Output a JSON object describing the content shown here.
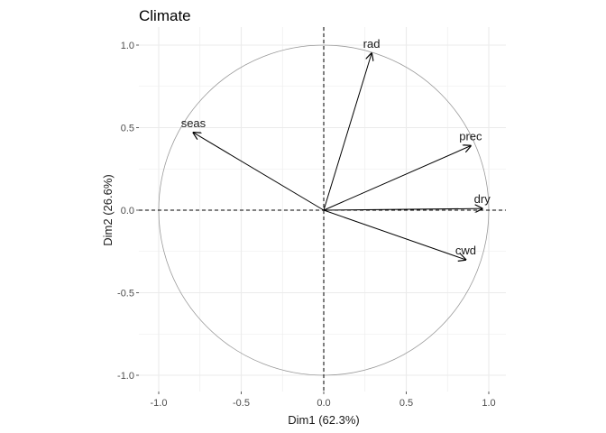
{
  "chart_data": {
    "type": "scatter",
    "subtype": "pca-correlation-circle",
    "title": "Climate",
    "xlabel": "Dim1 (62.3%)",
    "ylabel": "Dim2 (26.6%)",
    "xlim": [
      -1.1,
      1.1
    ],
    "ylim": [
      -1.1,
      1.1
    ],
    "xticks": [
      -1.0,
      -0.5,
      0.0,
      0.5,
      1.0
    ],
    "xtick_labels": [
      "-1.0",
      "-0.5",
      "0.0",
      "0.5",
      "1.0"
    ],
    "yticks": [
      -1.0,
      -0.5,
      0.0,
      0.5,
      1.0
    ],
    "ytick_labels": [
      "-1.0",
      "-0.5",
      "0.0",
      "0.5",
      "1.0"
    ],
    "grid": true,
    "unit_circle": true,
    "reference_lines": [
      {
        "axis": "x",
        "value": 0,
        "style": "dashed"
      },
      {
        "axis": "y",
        "value": 0,
        "style": "dashed"
      }
    ],
    "variables": [
      {
        "name": "rad",
        "x": 0.29,
        "y": 0.95
      },
      {
        "name": "seas",
        "x": -0.79,
        "y": 0.47
      },
      {
        "name": "prec",
        "x": 0.89,
        "y": 0.39
      },
      {
        "name": "dry",
        "x": 0.96,
        "y": 0.01
      },
      {
        "name": "cwd",
        "x": 0.86,
        "y": -0.3
      }
    ],
    "colors": {
      "arrow": "#000000",
      "circle": "#999999",
      "grid": "#ebebeb",
      "refline": "#000000"
    }
  }
}
